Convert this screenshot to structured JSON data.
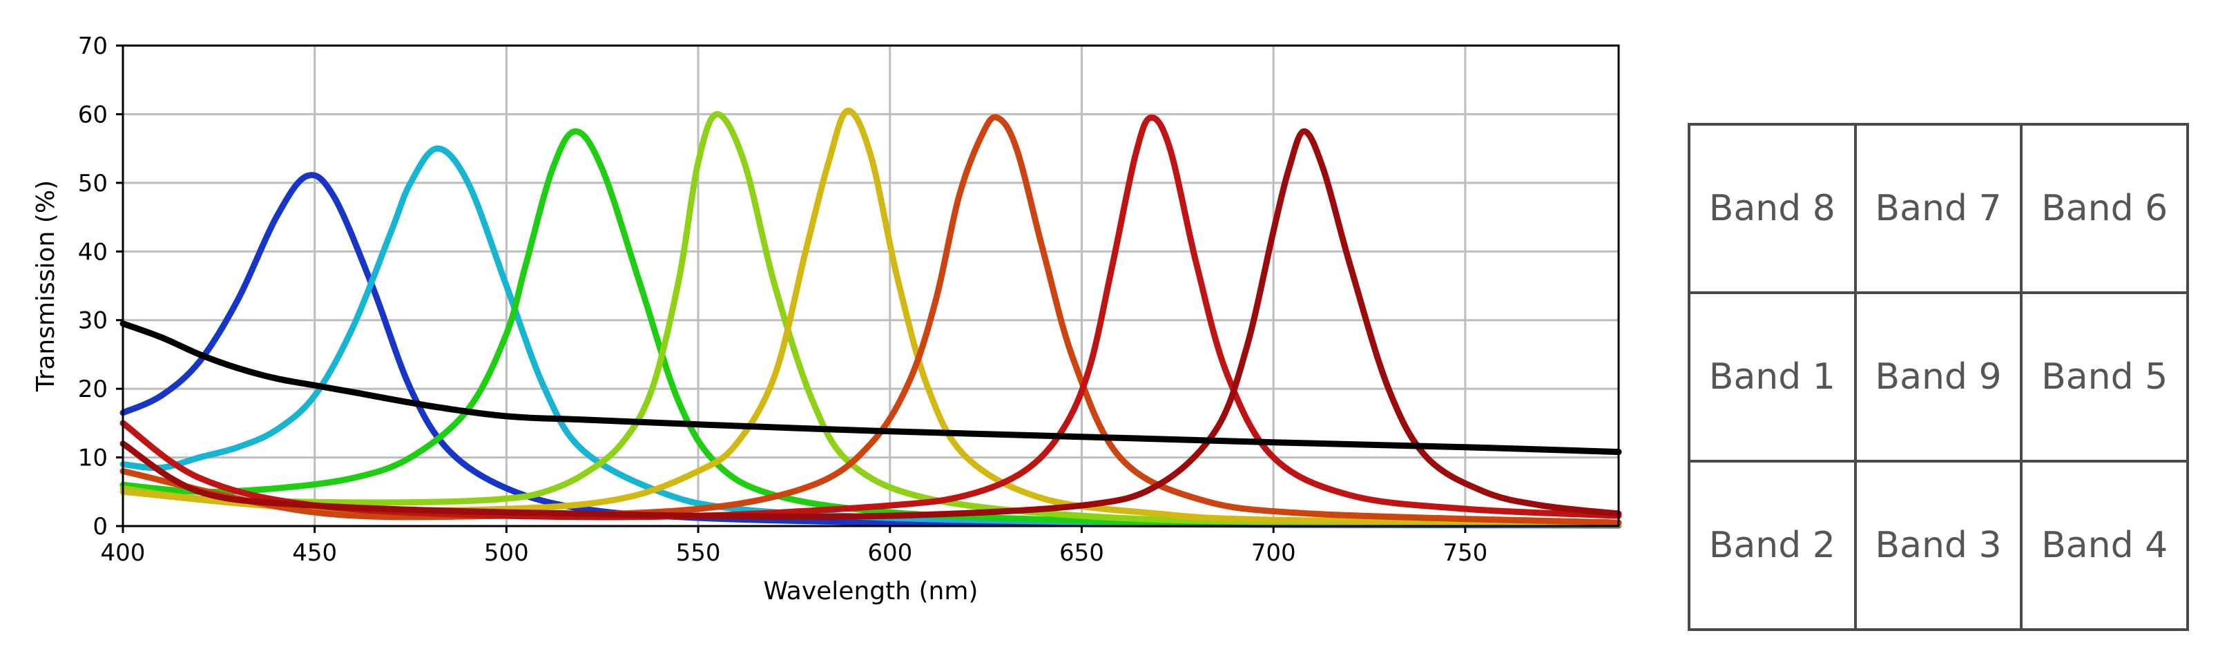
{
  "chart_data": {
    "type": "line",
    "title": "",
    "xlabel": "Wavelength (nm)",
    "ylabel": "Transmission (%)",
    "xlim": [
      400,
      790
    ],
    "ylim": [
      0,
      70
    ],
    "xticks": [
      400,
      450,
      500,
      550,
      600,
      650,
      700,
      750
    ],
    "yticks": [
      0,
      10,
      20,
      30,
      40,
      50,
      60,
      70
    ],
    "grid": true,
    "legend": "none",
    "series": [
      {
        "name": "blue filter",
        "color": "#1736c8",
        "x": [
          400,
          410,
          420,
          430,
          440,
          448,
          455,
          465,
          475,
          485,
          500,
          520,
          550,
          600,
          650,
          700,
          790
        ],
        "y": [
          16.5,
          19,
          24,
          33,
          45,
          51,
          48,
          35,
          20,
          11,
          5.5,
          2.5,
          1.2,
          0.5,
          0.3,
          0.2,
          0.1
        ]
      },
      {
        "name": "cyan filter",
        "color": "#17b5d2",
        "x": [
          400,
          410,
          420,
          430,
          440,
          450,
          460,
          470,
          475,
          482,
          490,
          500,
          510,
          520,
          540,
          560,
          600,
          650,
          700,
          790
        ],
        "y": [
          9,
          8.5,
          10,
          11.5,
          14,
          19,
          29,
          43,
          50,
          55,
          50,
          35,
          20,
          11,
          5,
          2.5,
          1.2,
          0.6,
          0.3,
          0.2
        ]
      },
      {
        "name": "green filter",
        "color": "#1fce12",
        "x": [
          400,
          420,
          440,
          460,
          475,
          490,
          500,
          505,
          512,
          518,
          525,
          535,
          545,
          555,
          570,
          600,
          650,
          700,
          790
        ],
        "y": [
          6,
          5,
          5.5,
          7,
          10,
          17,
          28,
          38,
          52,
          57.5,
          52,
          35,
          18,
          9,
          4.5,
          2,
          0.8,
          0.4,
          0.2
        ]
      },
      {
        "name": "yellow-green filter",
        "color": "#8fd117",
        "x": [
          400,
          420,
          450,
          480,
          500,
          510,
          520,
          530,
          538,
          545,
          550,
          555,
          562,
          570,
          580,
          590,
          610,
          650,
          700,
          790
        ],
        "y": [
          5.5,
          4,
          3.5,
          3.5,
          4,
          5,
          7.5,
          12,
          20,
          36,
          53,
          60,
          53,
          35,
          18,
          9,
          4,
          1.5,
          0.6,
          0.2
        ]
      },
      {
        "name": "yellow filter",
        "color": "#d1b812",
        "x": [
          400,
          450,
          500,
          530,
          550,
          560,
          570,
          578,
          584,
          589,
          595,
          602,
          610,
          620,
          640,
          670,
          700,
          790
        ],
        "y": [
          5,
          2.5,
          2.5,
          4,
          8,
          12,
          22,
          40,
          53,
          60.5,
          54,
          36,
          20,
          10,
          4,
          1.8,
          0.9,
          0.3
        ]
      },
      {
        "name": "orange filter",
        "color": "#cc4410",
        "x": [
          400,
          450,
          500,
          550,
          580,
          595,
          605,
          612,
          618,
          624,
          628,
          633,
          640,
          648,
          660,
          680,
          710,
          790
        ],
        "y": [
          8,
          2,
          1.5,
          2.5,
          6,
          12,
          21,
          33,
          48,
          57,
          59.5,
          55,
          40,
          24,
          10,
          4,
          1.8,
          0.5
        ]
      },
      {
        "name": "red filter",
        "color": "#c01414",
        "x": [
          400,
          420,
          450,
          500,
          550,
          600,
          620,
          635,
          645,
          652,
          658,
          664,
          668,
          673,
          680,
          688,
          700,
          720,
          750,
          790
        ],
        "y": [
          15,
          7,
          3,
          1.5,
          1.5,
          3,
          4.5,
          8,
          14,
          23,
          38,
          54,
          59.5,
          55,
          38,
          22,
          10,
          4.5,
          2.5,
          1.5
        ]
      },
      {
        "name": "dark red filter",
        "color": "#9c0b0b",
        "x": [
          400,
          420,
          450,
          500,
          550,
          600,
          650,
          670,
          685,
          693,
          700,
          704,
          708,
          713,
          720,
          730,
          740,
          755,
          770,
          790
        ],
        "y": [
          12,
          5,
          3,
          2,
          1.5,
          1.5,
          3,
          6,
          14,
          26,
          43,
          52,
          57.5,
          52,
          38,
          20,
          10,
          5,
          3,
          1.8
        ]
      },
      {
        "name": "unfiltered (black)",
        "color": "#000000",
        "x": [
          400,
          410,
          420,
          430,
          440,
          450,
          460,
          480,
          500,
          520,
          550,
          600,
          650,
          700,
          750,
          790
        ],
        "y": [
          29.5,
          27.5,
          25,
          23,
          21.5,
          20.5,
          19.5,
          17.5,
          16,
          15.5,
          14.8,
          13.8,
          13,
          12.2,
          11.5,
          10.8
        ]
      }
    ]
  },
  "band_grid": {
    "rows": [
      [
        "Band 8",
        "Band 7",
        "Band 6"
      ],
      [
        "Band 1",
        "Band 9",
        "Band 5"
      ],
      [
        "Band 2",
        "Band 3",
        "Band 4"
      ]
    ]
  }
}
